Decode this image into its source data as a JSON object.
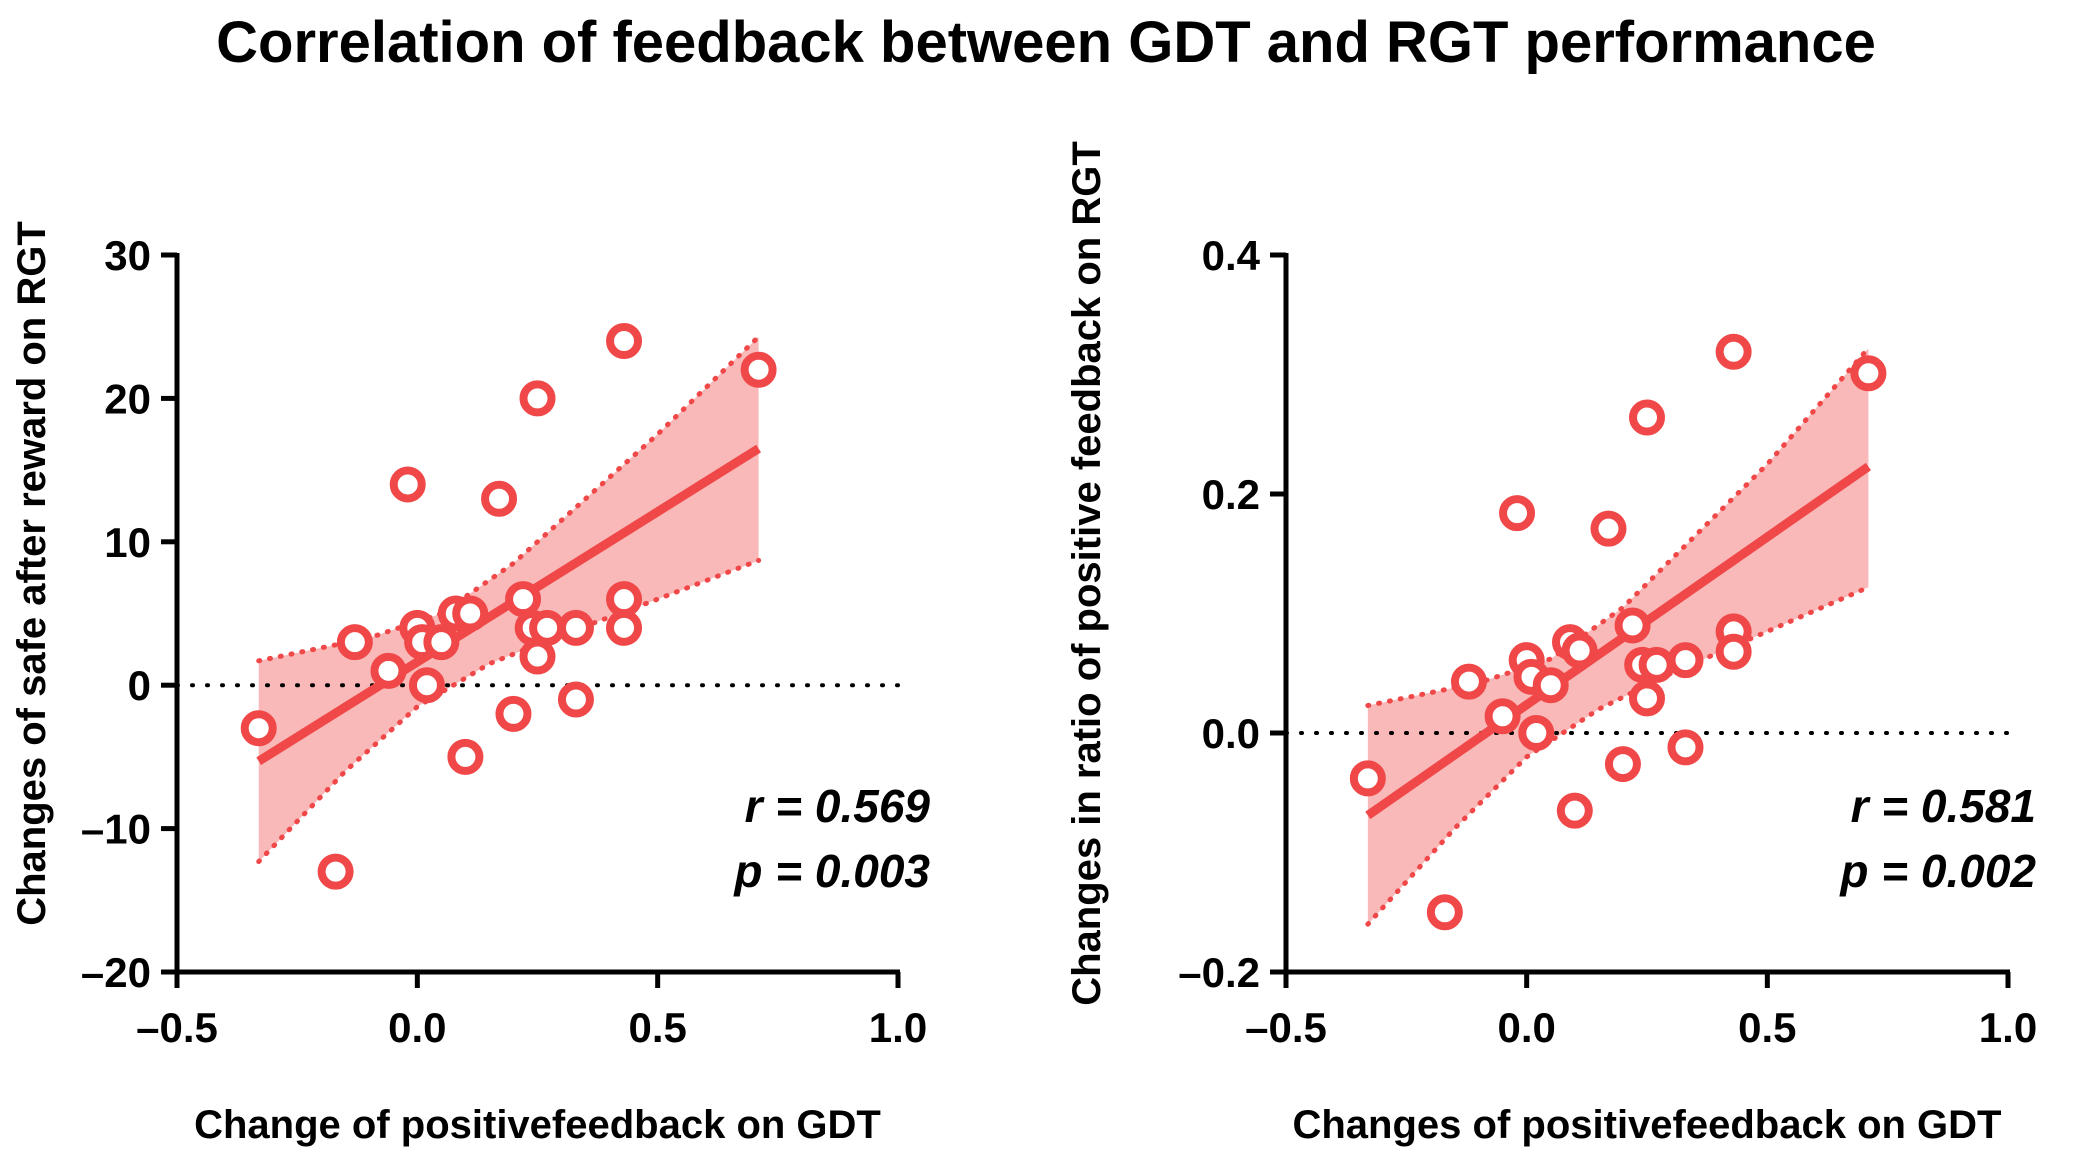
{
  "figure_title": "Correlation of feedback between GDT and RGT performance",
  "colors": {
    "accent": "#f04848",
    "band": "#f9b9b9",
    "axis": "#000000"
  },
  "chart_data": [
    {
      "type": "scatter",
      "xlabel": "Change of positivefeedback on GDT",
      "ylabel": "Changes of safe after reward on RGT",
      "xlim": [
        -0.5,
        1.0
      ],
      "ylim": [
        -20,
        30
      ],
      "xticks": [
        -0.5,
        0.0,
        0.5,
        1.0
      ],
      "xtick_labels": [
        "–0.5",
        "0.0",
        "0.5",
        "1.0"
      ],
      "yticks": [
        -20,
        -10,
        0,
        10,
        20,
        30
      ],
      "ytick_labels": [
        "–20",
        "–10",
        "0",
        "10",
        "20",
        "30"
      ],
      "reference_line_y": 0,
      "points": [
        {
          "x": -0.33,
          "y": -3
        },
        {
          "x": -0.17,
          "y": -13
        },
        {
          "x": -0.13,
          "y": 3
        },
        {
          "x": -0.06,
          "y": 1
        },
        {
          "x": -0.02,
          "y": 14
        },
        {
          "x": 0.0,
          "y": 4
        },
        {
          "x": 0.01,
          "y": 3
        },
        {
          "x": 0.02,
          "y": 0
        },
        {
          "x": 0.05,
          "y": 3
        },
        {
          "x": 0.08,
          "y": 5
        },
        {
          "x": 0.1,
          "y": -5
        },
        {
          "x": 0.11,
          "y": 5
        },
        {
          "x": 0.17,
          "y": 13
        },
        {
          "x": 0.2,
          "y": -2
        },
        {
          "x": 0.22,
          "y": 6
        },
        {
          "x": 0.24,
          "y": 4
        },
        {
          "x": 0.25,
          "y": 20
        },
        {
          "x": 0.25,
          "y": 2
        },
        {
          "x": 0.27,
          "y": 4
        },
        {
          "x": 0.33,
          "y": 4
        },
        {
          "x": 0.33,
          "y": -1
        },
        {
          "x": 0.43,
          "y": 24
        },
        {
          "x": 0.43,
          "y": 6
        },
        {
          "x": 0.43,
          "y": 4
        },
        {
          "x": 0.71,
          "y": 22
        }
      ],
      "fit_line": [
        {
          "x": -0.33,
          "y": -5.3
        },
        {
          "x": 0.71,
          "y": 16.5
        }
      ],
      "ci_upper": [
        {
          "x": -0.33,
          "y": 1.7
        },
        {
          "x": -0.1,
          "y": 3.3
        },
        {
          "x": 0.05,
          "y": 5.0
        },
        {
          "x": 0.2,
          "y": 8.5
        },
        {
          "x": 0.35,
          "y": 13.0
        },
        {
          "x": 0.5,
          "y": 17.5
        },
        {
          "x": 0.71,
          "y": 24.3
        }
      ],
      "ci_lower": [
        {
          "x": -0.33,
          "y": -12.3
        },
        {
          "x": -0.15,
          "y": -6.0
        },
        {
          "x": 0.0,
          "y": -1.5
        },
        {
          "x": 0.15,
          "y": 1.5
        },
        {
          "x": 0.3,
          "y": 3.5
        },
        {
          "x": 0.5,
          "y": 6.0
        },
        {
          "x": 0.71,
          "y": 8.7
        }
      ],
      "stats": {
        "r": "r = 0.569",
        "p": "p = 0.003"
      }
    },
    {
      "type": "scatter",
      "xlabel": "Changes of positivefeedback on GDT",
      "ylabel": "Changes in ratio of positive feedback on RGT",
      "xlim": [
        -0.5,
        1.0
      ],
      "ylim": [
        -0.2,
        0.4
      ],
      "xticks": [
        -0.5,
        0.0,
        0.5,
        1.0
      ],
      "xtick_labels": [
        "–0.5",
        "0.0",
        "0.5",
        "1.0"
      ],
      "yticks": [
        -0.2,
        0.0,
        0.2,
        0.4
      ],
      "ytick_labels": [
        "–0.2",
        "0.0",
        "0.2",
        "0.4"
      ],
      "reference_line_y": 0,
      "points": [
        {
          "x": -0.33,
          "y": -0.038
        },
        {
          "x": -0.17,
          "y": -0.15
        },
        {
          "x": -0.12,
          "y": 0.043
        },
        {
          "x": -0.05,
          "y": 0.014
        },
        {
          "x": -0.02,
          "y": 0.184
        },
        {
          "x": 0.0,
          "y": 0.061
        },
        {
          "x": 0.01,
          "y": 0.047
        },
        {
          "x": 0.02,
          "y": 0.0
        },
        {
          "x": 0.05,
          "y": 0.04
        },
        {
          "x": 0.09,
          "y": 0.076
        },
        {
          "x": 0.1,
          "y": -0.065
        },
        {
          "x": 0.11,
          "y": 0.069
        },
        {
          "x": 0.17,
          "y": 0.171
        },
        {
          "x": 0.2,
          "y": -0.026
        },
        {
          "x": 0.22,
          "y": 0.09
        },
        {
          "x": 0.24,
          "y": 0.057
        },
        {
          "x": 0.25,
          "y": 0.264
        },
        {
          "x": 0.25,
          "y": 0.029
        },
        {
          "x": 0.27,
          "y": 0.057
        },
        {
          "x": 0.33,
          "y": 0.061
        },
        {
          "x": 0.33,
          "y": -0.012
        },
        {
          "x": 0.43,
          "y": 0.319
        },
        {
          "x": 0.43,
          "y": 0.085
        },
        {
          "x": 0.43,
          "y": 0.068
        },
        {
          "x": 0.71,
          "y": 0.301
        }
      ],
      "fit_line": [
        {
          "x": -0.33,
          "y": -0.069
        },
        {
          "x": 0.71,
          "y": 0.223
        }
      ],
      "ci_upper": [
        {
          "x": -0.33,
          "y": 0.023
        },
        {
          "x": -0.1,
          "y": 0.042
        },
        {
          "x": 0.05,
          "y": 0.062
        },
        {
          "x": 0.2,
          "y": 0.105
        },
        {
          "x": 0.35,
          "y": 0.165
        },
        {
          "x": 0.5,
          "y": 0.225
        },
        {
          "x": 0.71,
          "y": 0.322
        }
      ],
      "ci_lower": [
        {
          "x": -0.33,
          "y": -0.16
        },
        {
          "x": -0.15,
          "y": -0.08
        },
        {
          "x": 0.0,
          "y": -0.02
        },
        {
          "x": 0.15,
          "y": 0.02
        },
        {
          "x": 0.3,
          "y": 0.05
        },
        {
          "x": 0.5,
          "y": 0.085
        },
        {
          "x": 0.71,
          "y": 0.122
        }
      ],
      "stats": {
        "r": "r = 0.581",
        "p": "p = 0.002"
      }
    }
  ]
}
